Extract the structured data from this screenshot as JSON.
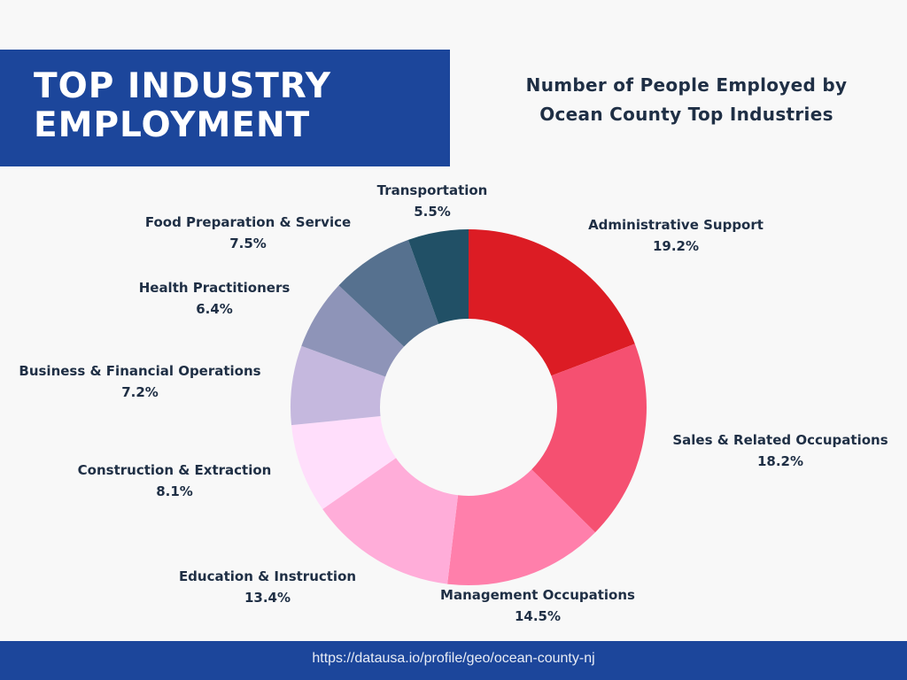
{
  "header": {
    "title_line1": "TOP INDUSTRY",
    "title_line2": "EMPLOYMENT",
    "block_color": "#1c469b"
  },
  "chart_title": {
    "line1": "Number of People Employed by",
    "line2": "Ocean County Top Industries"
  },
  "footer": {
    "url": "https://datausa.io/profile/geo/ocean-county-nj"
  },
  "chart_data": {
    "type": "pie",
    "variant": "donut",
    "title": "Number of People Employed by Ocean County Top Industries",
    "unit": "%",
    "categories": [
      "Administrative Support",
      "Sales & Related Occupations",
      "Management Occupations",
      "Education & Instruction",
      "Construction & Extraction",
      "Business & Financial Operations",
      "Health Practitioners",
      "Food Preparation & Service",
      "Transportation"
    ],
    "values": [
      19.2,
      18.2,
      14.5,
      13.4,
      8.1,
      7.2,
      6.4,
      7.5,
      5.5
    ],
    "labels": [
      "19.2%",
      "18.2%",
      "14.5%",
      "13.4%",
      "8.1%",
      "7.2%",
      "6.4%",
      "7.5%",
      "5.5%"
    ],
    "colors": [
      "#dc1c24",
      "#f55071",
      "#ff7fab",
      "#ffadd9",
      "#ffdefb",
      "#c5b8de",
      "#8e94b8",
      "#56718f",
      "#215066"
    ],
    "start_angle_deg": 0,
    "direction": "clockwise",
    "legend": "outside labels"
  }
}
